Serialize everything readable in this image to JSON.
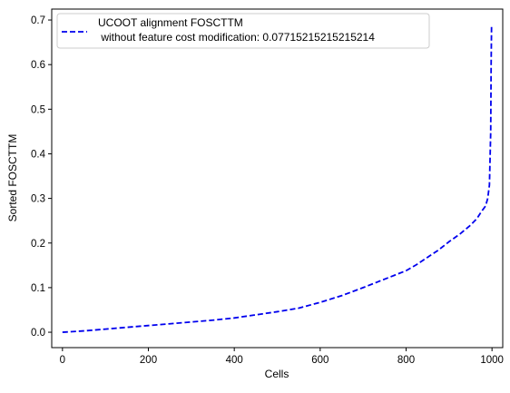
{
  "chart_data": {
    "type": "line",
    "title": "",
    "xlabel": "Cells",
    "ylabel": "Sorted FOSCTTM",
    "xlim": [
      -25,
      1025
    ],
    "ylim": [
      -0.0345,
      0.7245
    ],
    "xticks": [
      0,
      200,
      400,
      600,
      800,
      1000
    ],
    "xtick_labels": [
      "0",
      "200",
      "400",
      "600",
      "800",
      "1000"
    ],
    "yticks": [
      0.0,
      0.1,
      0.2,
      0.3,
      0.4,
      0.5,
      0.6,
      0.7
    ],
    "ytick_labels": [
      "0.0",
      "0.1",
      "0.2",
      "0.3",
      "0.4",
      "0.5",
      "0.6",
      "0.7"
    ],
    "grid": false,
    "legend_position": "top-left",
    "series": [
      {
        "name": "UCOOT alignment FOSCTTM\n without feature cost modification: 0.07715215215215214",
        "legend_lines": [
          "UCOOT alignment FOSCTTM",
          " without feature cost modification: 0.07715215215215214"
        ],
        "color": "#0000ee",
        "style": "dashed",
        "x": [
          0,
          50,
          100,
          150,
          200,
          250,
          300,
          350,
          400,
          450,
          500,
          550,
          600,
          650,
          700,
          750,
          800,
          825,
          850,
          875,
          900,
          925,
          950,
          965,
          975,
          985,
          990,
          994,
          997,
          998,
          999
        ],
        "y": [
          0.0,
          0.003,
          0.007,
          0.011,
          0.015,
          0.019,
          0.023,
          0.027,
          0.032,
          0.039,
          0.046,
          0.054,
          0.067,
          0.082,
          0.1,
          0.119,
          0.138,
          0.152,
          0.168,
          0.184,
          0.203,
          0.22,
          0.24,
          0.255,
          0.27,
          0.283,
          0.3,
          0.33,
          0.45,
          0.6,
          0.69
        ]
      }
    ]
  }
}
